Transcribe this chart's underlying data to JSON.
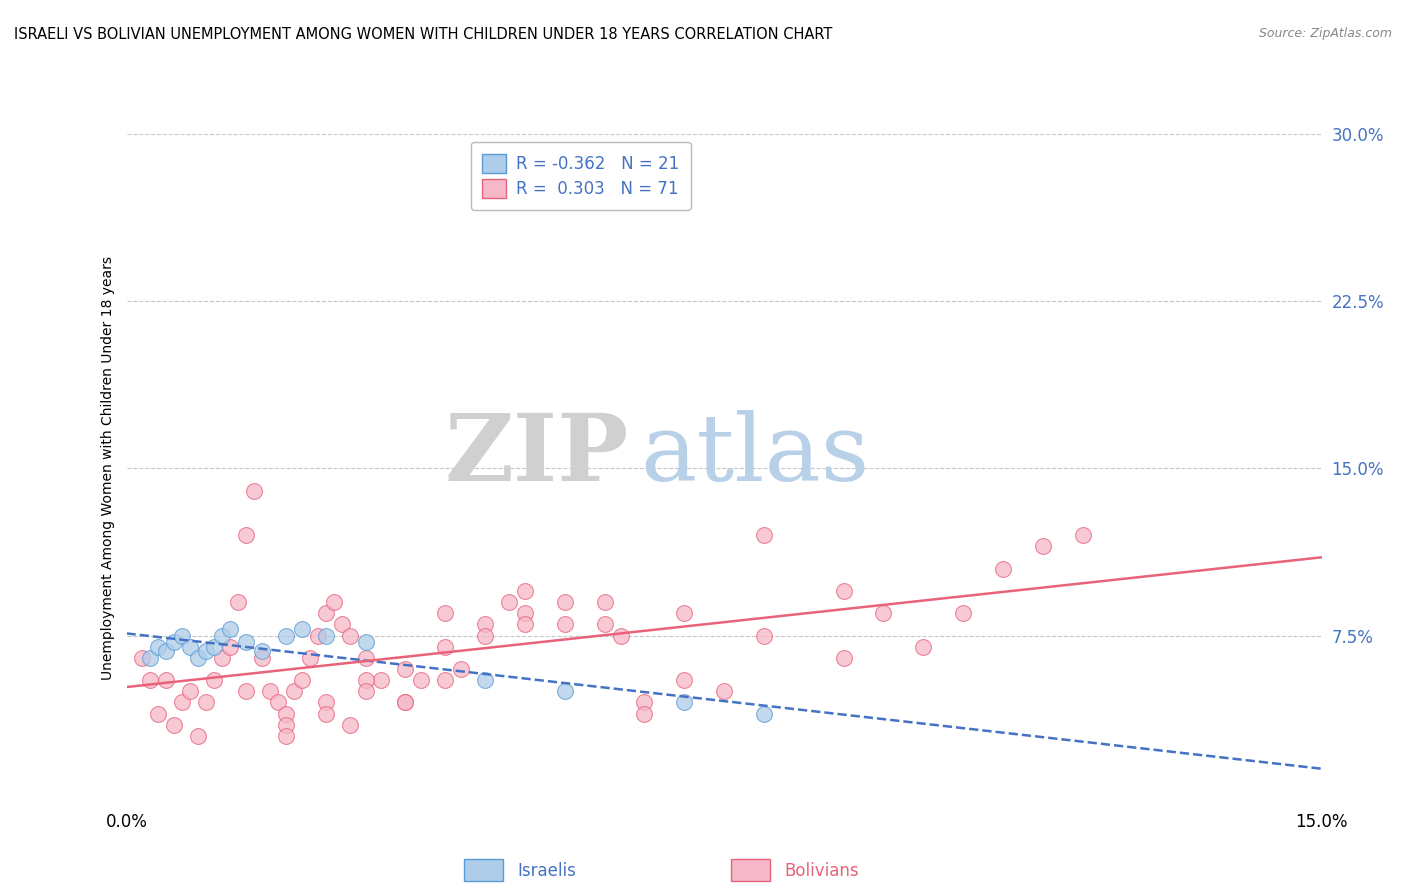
{
  "title": "ISRAELI VS BOLIVIAN UNEMPLOYMENT AMONG WOMEN WITH CHILDREN UNDER 18 YEARS CORRELATION CHART",
  "source": "Source: ZipAtlas.com",
  "ylabel": "Unemployment Among Women with Children Under 18 years",
  "xlim": [
    0.0,
    15.0
  ],
  "ylim": [
    0.0,
    30.0
  ],
  "yticks": [
    7.5,
    15.0,
    22.5,
    30.0
  ],
  "xticks": [
    0.0,
    15.0
  ],
  "israeli_color": "#aecde8",
  "bolivian_color": "#f5b8c8",
  "israeli_edge_color": "#5b9bd5",
  "bolivian_edge_color": "#e8637a",
  "israeli_line_color": "#4472c4",
  "bolivian_line_color": "#e8637a",
  "tick_color": "#4472c4",
  "background_color": "#ffffff",
  "grid_color": "#c8c8c8",
  "watermark_zip_color": "#d0d0d0",
  "watermark_atlas_color": "#b8d0e8",
  "israeli_x": [
    0.3,
    0.4,
    0.5,
    0.6,
    0.7,
    0.8,
    0.9,
    1.0,
    1.1,
    1.2,
    1.3,
    1.5,
    1.7,
    2.0,
    2.2,
    2.5,
    3.0,
    4.5,
    5.5,
    7.0,
    8.0
  ],
  "israeli_y": [
    6.5,
    7.0,
    6.8,
    7.2,
    7.5,
    7.0,
    6.5,
    6.8,
    7.0,
    7.5,
    7.8,
    7.2,
    6.8,
    7.5,
    7.8,
    7.5,
    7.2,
    5.5,
    5.0,
    4.5,
    4.0
  ],
  "bolivian_x": [
    0.2,
    0.3,
    0.4,
    0.5,
    0.6,
    0.7,
    0.8,
    0.9,
    1.0,
    1.1,
    1.2,
    1.3,
    1.4,
    1.5,
    1.6,
    1.7,
    1.8,
    1.9,
    2.0,
    2.1,
    2.2,
    2.3,
    2.4,
    2.5,
    2.6,
    2.7,
    2.8,
    3.0,
    3.2,
    3.5,
    3.7,
    4.0,
    4.2,
    4.5,
    5.0,
    5.5,
    6.0,
    6.5,
    7.0,
    7.5,
    8.0,
    9.0,
    9.5,
    10.0,
    11.0,
    11.5,
    12.0,
    1.5,
    2.0,
    2.5,
    3.0,
    3.5,
    4.0,
    5.0,
    6.0,
    7.0,
    8.0,
    9.0,
    10.5,
    2.0,
    2.5,
    3.0,
    2.8,
    4.5,
    5.5,
    6.5,
    4.0,
    3.5,
    5.0,
    4.8,
    6.2
  ],
  "bolivian_y": [
    6.5,
    5.5,
    4.0,
    5.5,
    3.5,
    4.5,
    5.0,
    3.0,
    4.5,
    5.5,
    6.5,
    7.0,
    9.0,
    12.0,
    14.0,
    6.5,
    5.0,
    4.5,
    4.0,
    5.0,
    5.5,
    6.5,
    7.5,
    8.5,
    9.0,
    8.0,
    7.5,
    6.5,
    5.5,
    4.5,
    5.5,
    8.5,
    6.0,
    8.0,
    8.5,
    9.0,
    9.0,
    4.5,
    5.5,
    5.0,
    7.5,
    6.5,
    8.5,
    7.0,
    10.5,
    11.5,
    12.0,
    5.0,
    3.5,
    4.5,
    5.5,
    4.5,
    5.5,
    9.5,
    8.0,
    8.5,
    12.0,
    9.5,
    8.5,
    3.0,
    4.0,
    5.0,
    3.5,
    7.5,
    8.0,
    4.0,
    7.0,
    6.0,
    8.0,
    9.0,
    7.5
  ]
}
